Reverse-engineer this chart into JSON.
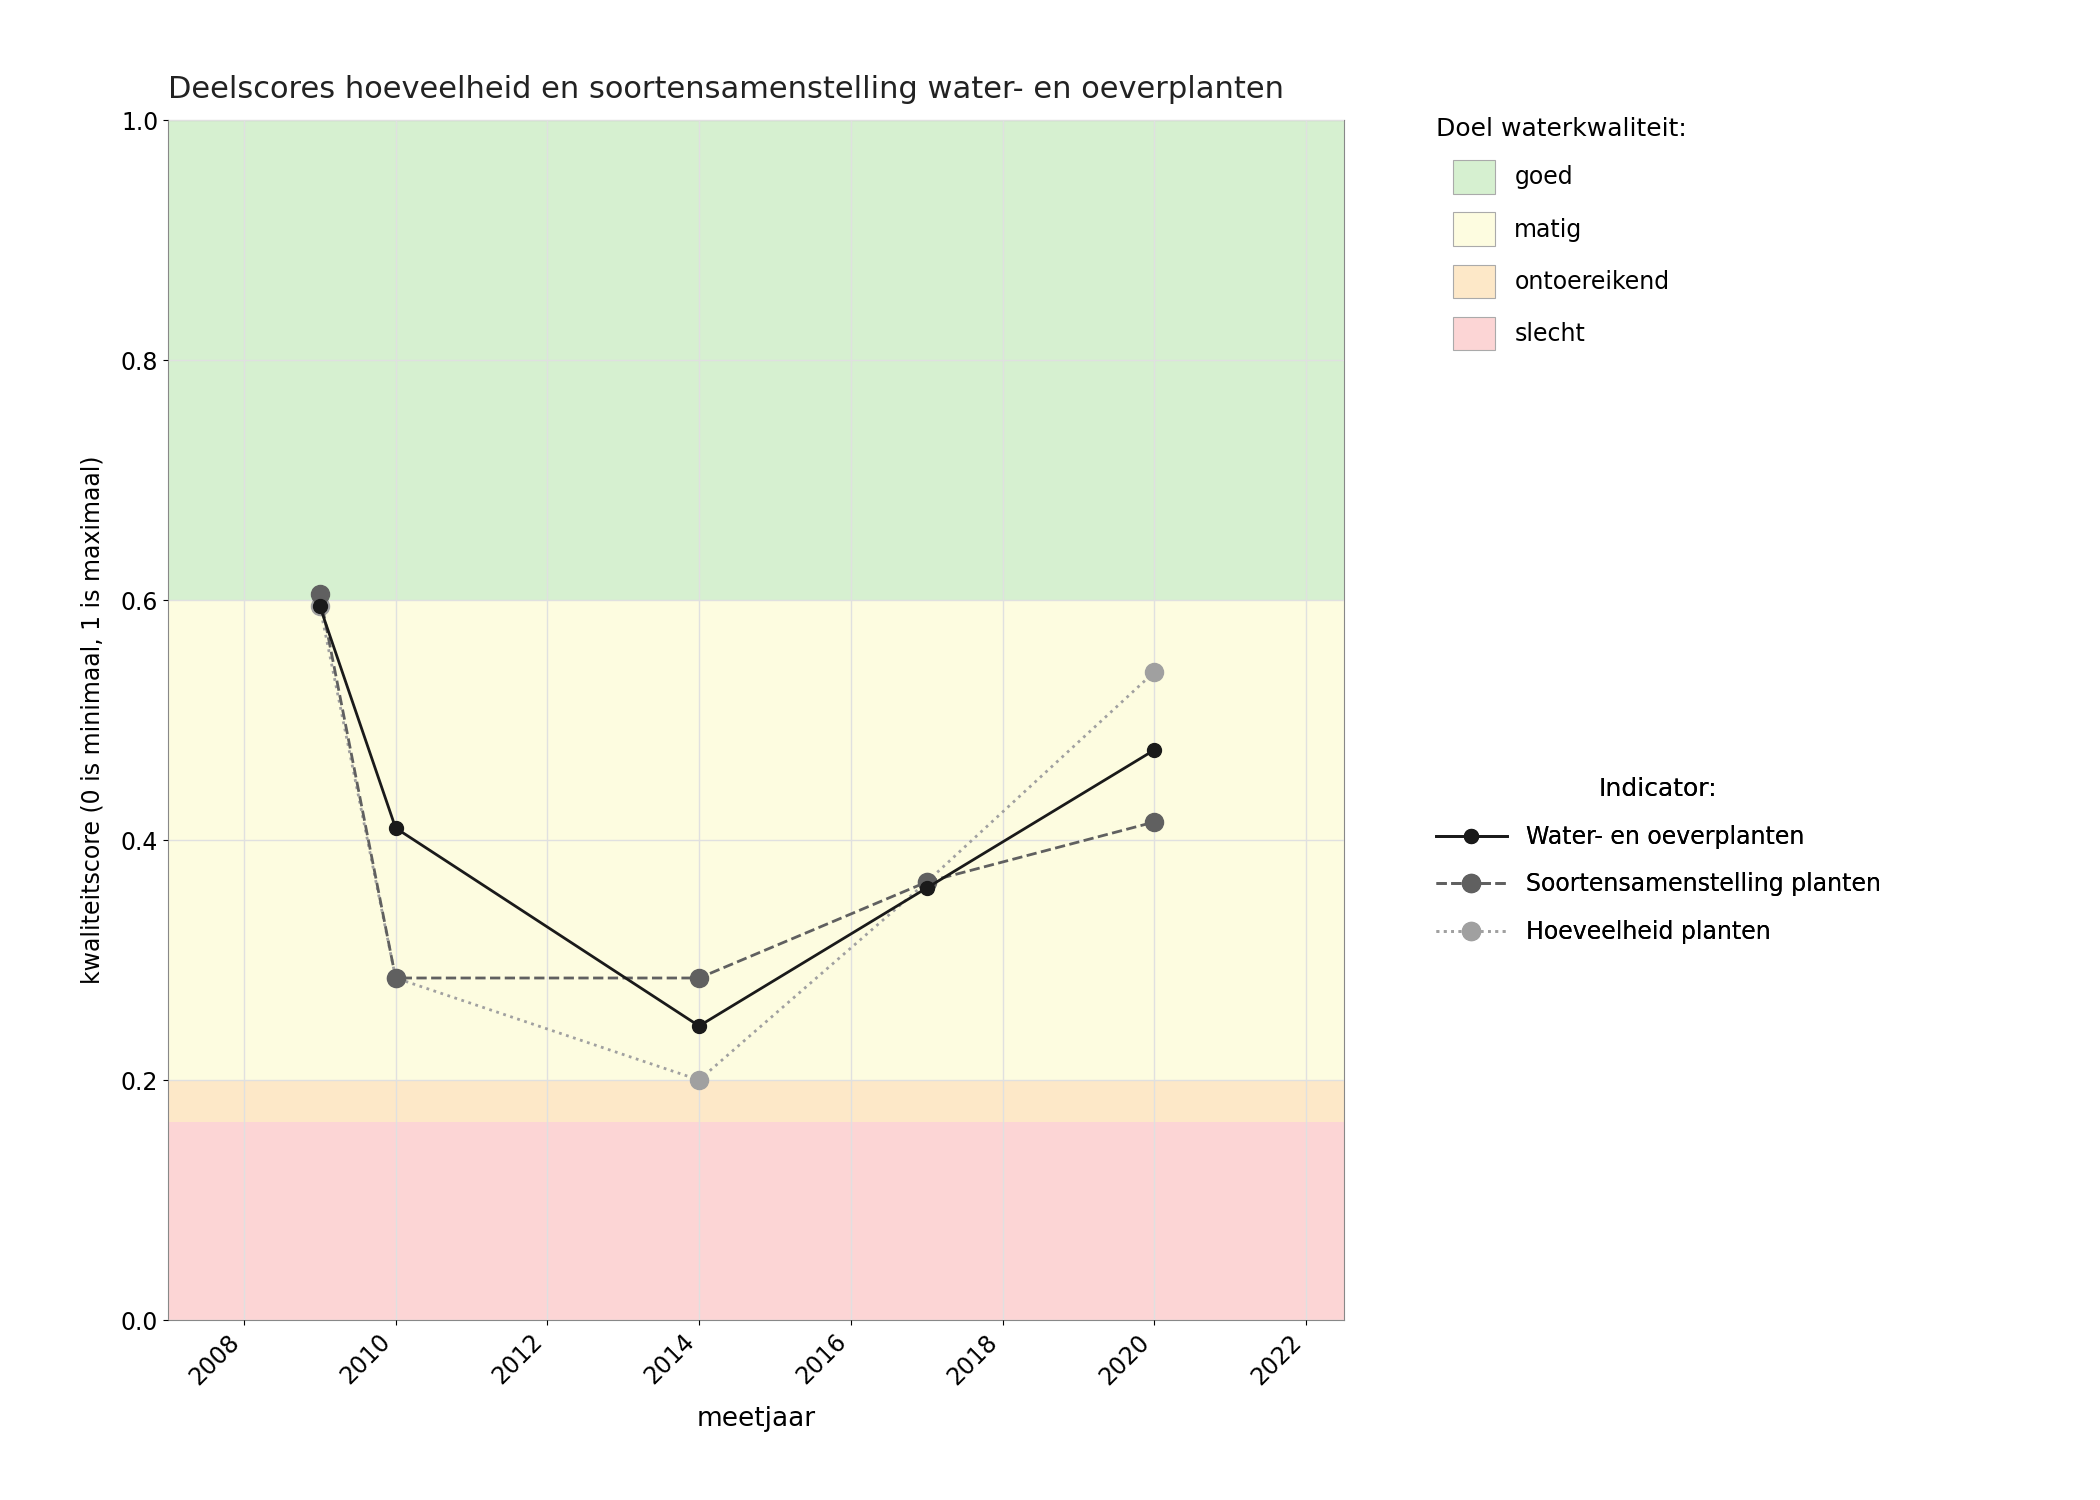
{
  "title": "Deelscores hoeveelheid en soortensamenstelling water- en oeverplanten",
  "xlabel": "meetjaar",
  "ylabel": "kwaliteitscore (0 is minimaal, 1 is maximaal)",
  "xlim": [
    2007,
    2022.5
  ],
  "ylim": [
    0.0,
    1.0
  ],
  "xticks": [
    2008,
    2010,
    2012,
    2014,
    2016,
    2018,
    2020,
    2022
  ],
  "yticks": [
    0.0,
    0.2,
    0.4,
    0.6,
    0.8,
    1.0
  ],
  "bg_color": "#ffffff",
  "zones": [
    {
      "name": "goed",
      "ymin": 0.6,
      "ymax": 1.0,
      "color": "#d6f0d0"
    },
    {
      "name": "matig",
      "ymin": 0.2,
      "ymax": 0.6,
      "color": "#fdfce0"
    },
    {
      "name": "ontoereikend",
      "ymin": 0.165,
      "ymax": 0.2,
      "color": "#fde8c8"
    },
    {
      "name": "slecht",
      "ymin": 0.0,
      "ymax": 0.165,
      "color": "#fcd5d5"
    }
  ],
  "grid_color": "#e0e0e0",
  "water_oeverplanten": {
    "years": [
      2009,
      2010,
      2014,
      2017,
      2020
    ],
    "values": [
      0.595,
      0.41,
      0.245,
      0.36,
      0.475
    ],
    "color": "#1a1a1a",
    "linestyle": "solid",
    "linewidth": 2.0,
    "marker": "o",
    "markersize": 10,
    "label": "Water- en oeverplanten"
  },
  "soortensamenstelling": {
    "years": [
      2009,
      2010,
      2014,
      2017,
      2020
    ],
    "values": [
      0.605,
      0.285,
      0.285,
      0.365,
      0.415
    ],
    "color": "#606060",
    "linestyle": "dashed",
    "linewidth": 2.0,
    "marker": "o",
    "markersize": 13,
    "label": "Soortensamenstelling planten"
  },
  "hoeveelheid": {
    "years": [
      2009,
      2010,
      2014,
      2017,
      2020
    ],
    "values": [
      0.595,
      0.285,
      0.2,
      0.365,
      0.54
    ],
    "color": "#a0a0a0",
    "linestyle": "dotted",
    "linewidth": 2.0,
    "marker": "o",
    "markersize": 13,
    "label": "Hoeveelheid planten"
  },
  "legend_zone_colors": {
    "goed": "#d6f0d0",
    "matig": "#fdfce0",
    "ontoereikend": "#fde8c8",
    "slecht": "#fcd5d5"
  },
  "legend_title1": "Doel waterkwaliteit:",
  "legend_title2": "Indicator:"
}
